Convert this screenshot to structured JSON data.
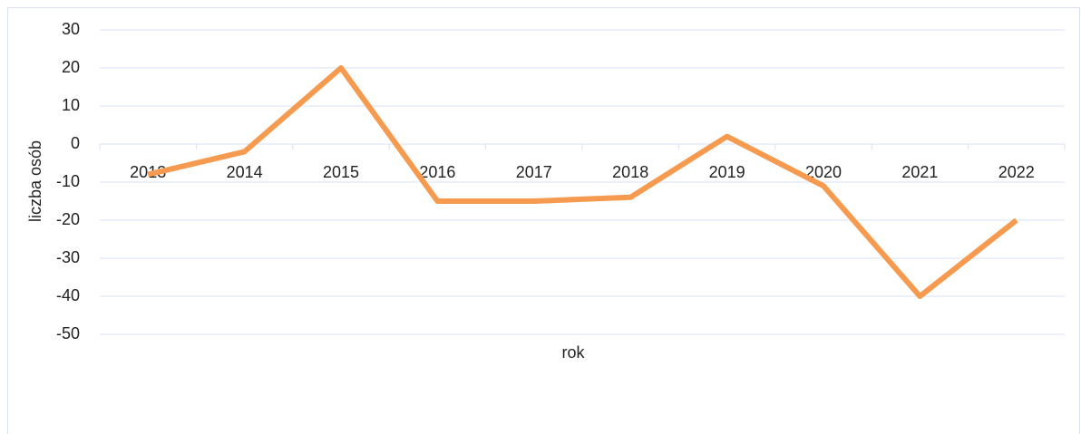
{
  "chart_data": {
    "type": "line",
    "x_label": "rok",
    "y_label": "liczba osób",
    "categories": [
      "2013",
      "2014",
      "2015",
      "2016",
      "2017",
      "2018",
      "2019",
      "2020",
      "2021",
      "2022"
    ],
    "series": [
      {
        "name": "liczba osób",
        "color": "#f59a4f",
        "values": [
          -8,
          -2,
          20,
          -15,
          -15,
          -14,
          2,
          -11,
          -40,
          -20
        ]
      }
    ],
    "ylim": [
      -50,
      30
    ],
    "yticks": [
      -50,
      -40,
      -30,
      -20,
      -10,
      0,
      10,
      20,
      30
    ],
    "grid": true
  }
}
